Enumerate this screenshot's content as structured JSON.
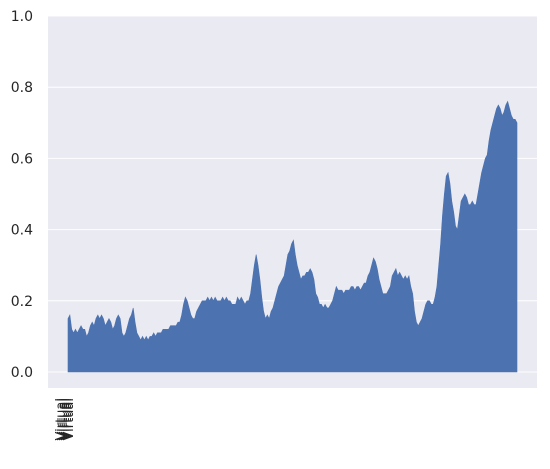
{
  "chart_data": {
    "type": "area",
    "title": "",
    "xlabel": "",
    "ylabel": "",
    "ylim": [
      0.0,
      1.0
    ],
    "yticks": [
      "0.0",
      "0.2",
      "0.4",
      "0.6",
      "0.8",
      "1.0"
    ],
    "grid": true,
    "fill_color": "#4c72b0",
    "background_color": "#eaeaf2",
    "x_tick_labels_overlapping": "Virtual",
    "series": [
      {
        "values": [
          0.15,
          0.16,
          0.12,
          0.11,
          0.12,
          0.11,
          0.12,
          0.13,
          0.12,
          0.12,
          0.1,
          0.11,
          0.13,
          0.14,
          0.13,
          0.15,
          0.16,
          0.15,
          0.16,
          0.15,
          0.13,
          0.14,
          0.15,
          0.14,
          0.12,
          0.13,
          0.15,
          0.16,
          0.15,
          0.11,
          0.1,
          0.11,
          0.13,
          0.15,
          0.16,
          0.18,
          0.14,
          0.11,
          0.1,
          0.09,
          0.1,
          0.09,
          0.1,
          0.09,
          0.1,
          0.1,
          0.11,
          0.1,
          0.11,
          0.11,
          0.11,
          0.12,
          0.12,
          0.12,
          0.12,
          0.13,
          0.13,
          0.13,
          0.13,
          0.14,
          0.14,
          0.16,
          0.19,
          0.21,
          0.2,
          0.18,
          0.16,
          0.15,
          0.15,
          0.17,
          0.18,
          0.19,
          0.2,
          0.2,
          0.2,
          0.21,
          0.2,
          0.21,
          0.2,
          0.21,
          0.2,
          0.2,
          0.2,
          0.21,
          0.2,
          0.21,
          0.2,
          0.2,
          0.19,
          0.19,
          0.19,
          0.21,
          0.2,
          0.21,
          0.2,
          0.19,
          0.2,
          0.2,
          0.22,
          0.26,
          0.3,
          0.33,
          0.3,
          0.26,
          0.21,
          0.17,
          0.15,
          0.16,
          0.15,
          0.17,
          0.18,
          0.2,
          0.22,
          0.24,
          0.25,
          0.26,
          0.27,
          0.3,
          0.33,
          0.34,
          0.36,
          0.37,
          0.33,
          0.3,
          0.28,
          0.26,
          0.27,
          0.27,
          0.28,
          0.28,
          0.29,
          0.28,
          0.26,
          0.22,
          0.21,
          0.19,
          0.19,
          0.18,
          0.19,
          0.18,
          0.18,
          0.19,
          0.2,
          0.22,
          0.24,
          0.23,
          0.23,
          0.23,
          0.22,
          0.23,
          0.23,
          0.23,
          0.24,
          0.24,
          0.23,
          0.24,
          0.24,
          0.23,
          0.24,
          0.25,
          0.25,
          0.27,
          0.28,
          0.3,
          0.32,
          0.31,
          0.29,
          0.26,
          0.24,
          0.22,
          0.22,
          0.22,
          0.23,
          0.24,
          0.27,
          0.28,
          0.29,
          0.27,
          0.28,
          0.27,
          0.26,
          0.27,
          0.26,
          0.27,
          0.24,
          0.22,
          0.17,
          0.14,
          0.13,
          0.14,
          0.15,
          0.17,
          0.19,
          0.2,
          0.2,
          0.19,
          0.19,
          0.21,
          0.24,
          0.3,
          0.36,
          0.44,
          0.5,
          0.55,
          0.56,
          0.53,
          0.48,
          0.45,
          0.41,
          0.4,
          0.44,
          0.48,
          0.49,
          0.5,
          0.49,
          0.47,
          0.47,
          0.48,
          0.47,
          0.47,
          0.5,
          0.53,
          0.56,
          0.58,
          0.6,
          0.61,
          0.65,
          0.68,
          0.7,
          0.72,
          0.74,
          0.75,
          0.74,
          0.72,
          0.73,
          0.75,
          0.76,
          0.74,
          0.72,
          0.71,
          0.71,
          0.7
        ]
      }
    ]
  }
}
